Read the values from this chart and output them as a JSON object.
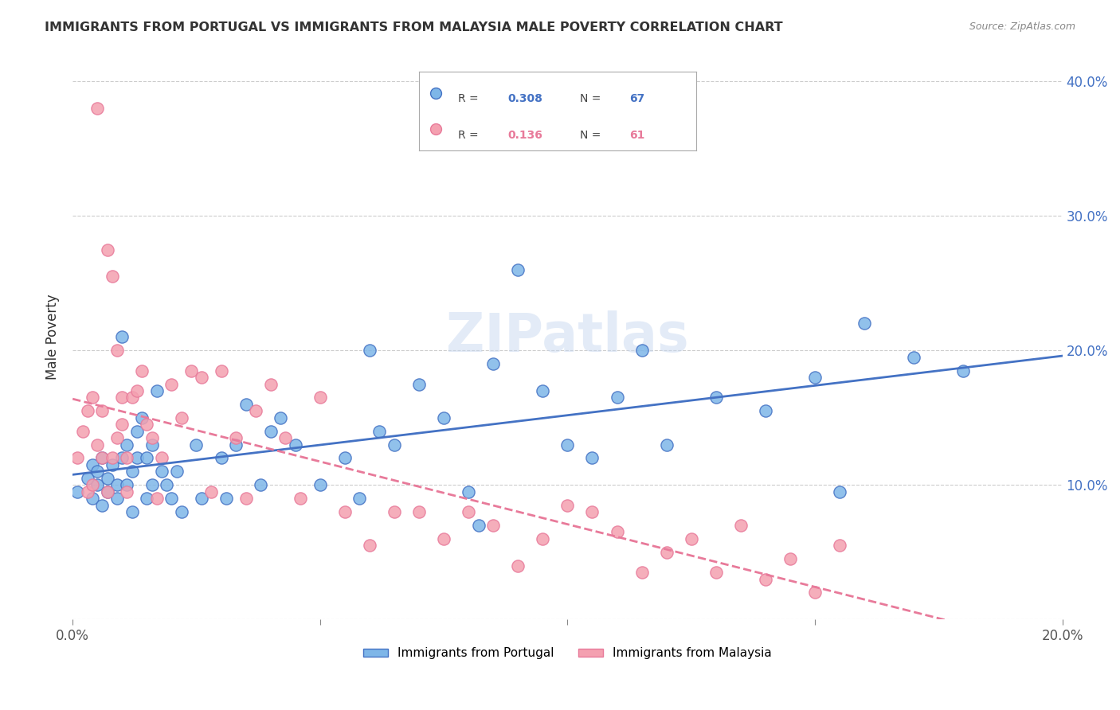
{
  "title": "IMMIGRANTS FROM PORTUGAL VS IMMIGRANTS FROM MALAYSIA MALE POVERTY CORRELATION CHART",
  "source": "Source: ZipAtlas.com",
  "xlabel": "",
  "ylabel": "Male Poverty",
  "xlim": [
    0.0,
    0.2
  ],
  "ylim": [
    0.0,
    0.42
  ],
  "xticks": [
    0.0,
    0.05,
    0.1,
    0.15,
    0.2
  ],
  "yticks": [
    0.0,
    0.1,
    0.2,
    0.3,
    0.4
  ],
  "xticklabels": [
    "0.0%",
    "",
    "",
    "",
    "20.0%"
  ],
  "yticklabels_right": [
    "",
    "10.0%",
    "20.0%",
    "30.0%",
    "40.0%"
  ],
  "legend_r1": "0.308",
  "legend_n1": "67",
  "legend_r2": "0.136",
  "legend_n2": "61",
  "color_portugal": "#7EB6E8",
  "color_malaysia": "#F4A0B0",
  "color_portugal_line": "#4472C4",
  "color_malaysia_line": "#E87A9A",
  "watermark": "ZIPatlas",
  "portugal_scatter_x": [
    0.001,
    0.003,
    0.004,
    0.004,
    0.005,
    0.005,
    0.006,
    0.006,
    0.007,
    0.007,
    0.008,
    0.009,
    0.009,
    0.01,
    0.01,
    0.011,
    0.011,
    0.012,
    0.012,
    0.013,
    0.013,
    0.014,
    0.015,
    0.015,
    0.016,
    0.016,
    0.017,
    0.018,
    0.019,
    0.02,
    0.021,
    0.022,
    0.025,
    0.026,
    0.03,
    0.031,
    0.033,
    0.035,
    0.038,
    0.04,
    0.042,
    0.045,
    0.05,
    0.055,
    0.058,
    0.06,
    0.062,
    0.065,
    0.07,
    0.075,
    0.08,
    0.082,
    0.085,
    0.09,
    0.095,
    0.1,
    0.105,
    0.11,
    0.115,
    0.12,
    0.13,
    0.14,
    0.15,
    0.155,
    0.16,
    0.17,
    0.18
  ],
  "portugal_scatter_y": [
    0.095,
    0.105,
    0.115,
    0.09,
    0.1,
    0.11,
    0.12,
    0.085,
    0.095,
    0.105,
    0.115,
    0.09,
    0.1,
    0.21,
    0.12,
    0.1,
    0.13,
    0.11,
    0.08,
    0.12,
    0.14,
    0.15,
    0.09,
    0.12,
    0.1,
    0.13,
    0.17,
    0.11,
    0.1,
    0.09,
    0.11,
    0.08,
    0.13,
    0.09,
    0.12,
    0.09,
    0.13,
    0.16,
    0.1,
    0.14,
    0.15,
    0.13,
    0.1,
    0.12,
    0.09,
    0.2,
    0.14,
    0.13,
    0.175,
    0.15,
    0.095,
    0.07,
    0.19,
    0.26,
    0.17,
    0.13,
    0.12,
    0.165,
    0.2,
    0.13,
    0.165,
    0.155,
    0.18,
    0.095,
    0.22,
    0.195,
    0.185
  ],
  "malaysia_scatter_x": [
    0.001,
    0.002,
    0.003,
    0.003,
    0.004,
    0.004,
    0.005,
    0.005,
    0.006,
    0.006,
    0.007,
    0.007,
    0.008,
    0.008,
    0.009,
    0.009,
    0.01,
    0.01,
    0.011,
    0.011,
    0.012,
    0.013,
    0.014,
    0.015,
    0.016,
    0.017,
    0.018,
    0.02,
    0.022,
    0.024,
    0.026,
    0.028,
    0.03,
    0.033,
    0.035,
    0.037,
    0.04,
    0.043,
    0.046,
    0.05,
    0.055,
    0.06,
    0.065,
    0.07,
    0.075,
    0.08,
    0.085,
    0.09,
    0.095,
    0.1,
    0.105,
    0.11,
    0.115,
    0.12,
    0.125,
    0.13,
    0.135,
    0.14,
    0.145,
    0.15,
    0.155
  ],
  "malaysia_scatter_y": [
    0.12,
    0.14,
    0.155,
    0.095,
    0.165,
    0.1,
    0.13,
    0.38,
    0.12,
    0.155,
    0.095,
    0.275,
    0.255,
    0.12,
    0.2,
    0.135,
    0.165,
    0.145,
    0.095,
    0.12,
    0.165,
    0.17,
    0.185,
    0.145,
    0.135,
    0.09,
    0.12,
    0.175,
    0.15,
    0.185,
    0.18,
    0.095,
    0.185,
    0.135,
    0.09,
    0.155,
    0.175,
    0.135,
    0.09,
    0.165,
    0.08,
    0.055,
    0.08,
    0.08,
    0.06,
    0.08,
    0.07,
    0.04,
    0.06,
    0.085,
    0.08,
    0.065,
    0.035,
    0.05,
    0.06,
    0.035,
    0.07,
    0.03,
    0.045,
    0.02,
    0.055
  ]
}
